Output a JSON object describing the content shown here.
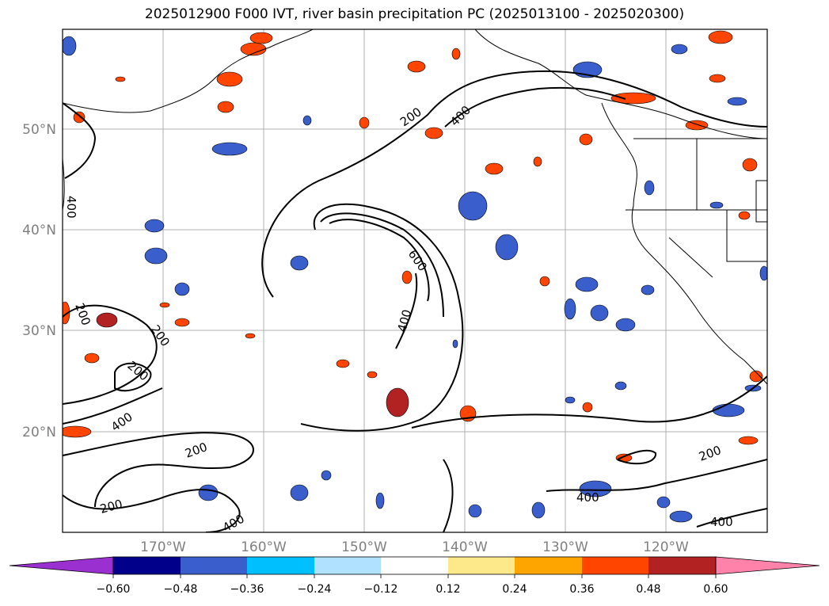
{
  "title": "2025012900 F000 IVT, river basin precipitation PC (2025013100 - 2025020300)",
  "map": {
    "lon_labels": [
      "170°W",
      "160°W",
      "150°W",
      "140°W",
      "130°W",
      "120°W"
    ],
    "lat_labels": [
      "50°N",
      "40°N",
      "30°N",
      "20°N"
    ],
    "contour_labels": [
      "200",
      "400",
      "600",
      "400",
      "200",
      "400",
      "200",
      "200",
      "200",
      "400",
      "400",
      "200",
      "400",
      "400",
      "200"
    ]
  },
  "colorbar": {
    "ticks": [
      "−0.60",
      "−0.48",
      "−0.36",
      "−0.24",
      "−0.12",
      "0.12",
      "0.24",
      "0.36",
      "0.48",
      "0.60"
    ],
    "colors": [
      "#9b30d0",
      "#00008b",
      "#3a5fcd",
      "#00bfff",
      "#b0e2ff",
      "#ffffff",
      "#fde98a",
      "#ffa500",
      "#ff4500",
      "#b22222",
      "#ff82ab"
    ]
  }
}
